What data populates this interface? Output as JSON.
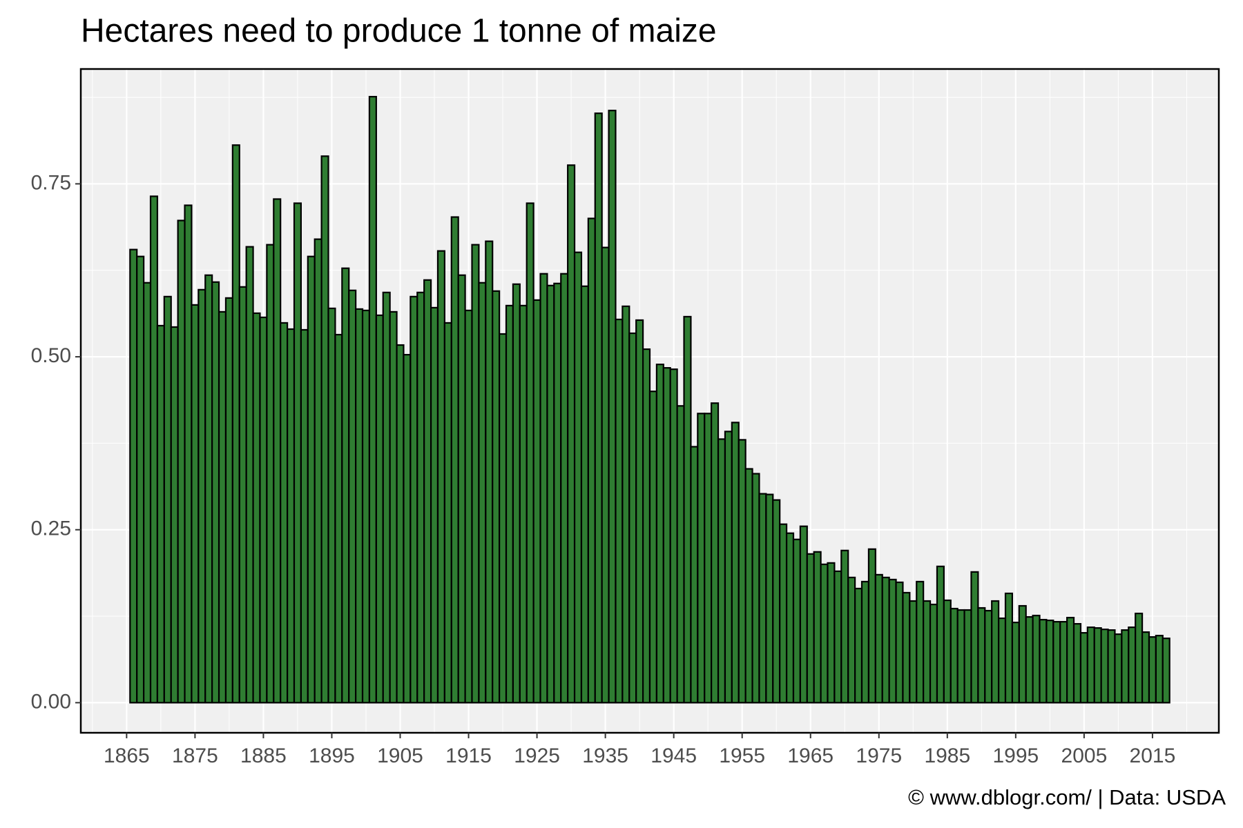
{
  "chart_data": {
    "type": "bar",
    "title": "Hectares need to produce 1 tonne of maize",
    "caption": "© www.dblogr.com/  |  Data: USDA",
    "x": [
      1866,
      1867,
      1868,
      1869,
      1870,
      1871,
      1872,
      1873,
      1874,
      1875,
      1876,
      1877,
      1878,
      1879,
      1880,
      1881,
      1882,
      1883,
      1884,
      1885,
      1886,
      1887,
      1888,
      1889,
      1890,
      1891,
      1892,
      1893,
      1894,
      1895,
      1896,
      1897,
      1898,
      1899,
      1900,
      1901,
      1902,
      1903,
      1904,
      1905,
      1906,
      1907,
      1908,
      1909,
      1910,
      1911,
      1912,
      1913,
      1914,
      1915,
      1916,
      1917,
      1918,
      1919,
      1920,
      1921,
      1922,
      1923,
      1924,
      1925,
      1926,
      1927,
      1928,
      1929,
      1930,
      1931,
      1932,
      1933,
      1934,
      1935,
      1936,
      1937,
      1938,
      1939,
      1940,
      1941,
      1942,
      1943,
      1944,
      1945,
      1946,
      1947,
      1948,
      1949,
      1950,
      1951,
      1952,
      1953,
      1954,
      1955,
      1956,
      1957,
      1958,
      1959,
      1960,
      1961,
      1962,
      1963,
      1964,
      1965,
      1966,
      1967,
      1968,
      1969,
      1970,
      1971,
      1972,
      1973,
      1974,
      1975,
      1976,
      1977,
      1978,
      1979,
      1980,
      1981,
      1982,
      1983,
      1984,
      1985,
      1986,
      1987,
      1988,
      1989,
      1990,
      1991,
      1992,
      1993,
      1994,
      1995,
      1996,
      1997,
      1998,
      1999,
      2000,
      2001,
      2002,
      2003,
      2004,
      2005,
      2006,
      2007,
      2008,
      2009,
      2010,
      2011,
      2012,
      2013,
      2014,
      2015,
      2016,
      2017
    ],
    "values": [
      0.655,
      0.645,
      0.607,
      0.732,
      0.545,
      0.587,
      0.543,
      0.697,
      0.719,
      0.575,
      0.597,
      0.618,
      0.608,
      0.565,
      0.585,
      0.806,
      0.601,
      0.659,
      0.563,
      0.557,
      0.662,
      0.728,
      0.549,
      0.54,
      0.722,
      0.539,
      0.645,
      0.67,
      0.79,
      0.57,
      0.532,
      0.628,
      0.596,
      0.569,
      0.567,
      0.876,
      0.56,
      0.593,
      0.565,
      0.517,
      0.503,
      0.587,
      0.593,
      0.611,
      0.571,
      0.653,
      0.549,
      0.702,
      0.618,
      0.567,
      0.662,
      0.607,
      0.667,
      0.595,
      0.533,
      0.574,
      0.605,
      0.574,
      0.722,
      0.582,
      0.62,
      0.603,
      0.606,
      0.62,
      0.777,
      0.651,
      0.602,
      0.7,
      0.852,
      0.658,
      0.856,
      0.554,
      0.573,
      0.534,
      0.553,
      0.511,
      0.45,
      0.489,
      0.484,
      0.482,
      0.429,
      0.558,
      0.37,
      0.418,
      0.418,
      0.433,
      0.381,
      0.392,
      0.405,
      0.38,
      0.338,
      0.331,
      0.302,
      0.301,
      0.293,
      0.258,
      0.245,
      0.236,
      0.255,
      0.215,
      0.218,
      0.2,
      0.202,
      0.19,
      0.22,
      0.181,
      0.165,
      0.175,
      0.222,
      0.185,
      0.181,
      0.178,
      0.174,
      0.159,
      0.147,
      0.175,
      0.147,
      0.142,
      0.197,
      0.148,
      0.136,
      0.134,
      0.134,
      0.189,
      0.137,
      0.133,
      0.147,
      0.122,
      0.158,
      0.116,
      0.14,
      0.124,
      0.126,
      0.12,
      0.119,
      0.117,
      0.117,
      0.123,
      0.114,
      0.101,
      0.109,
      0.108,
      0.106,
      0.105,
      0.099,
      0.105,
      0.109,
      0.129,
      0.102,
      0.095,
      0.097,
      0.093
    ],
    "color": "#2f7d32",
    "xlim": [
      1858.3,
      2024.7
    ],
    "xticks": [
      1865,
      1875,
      1885,
      1895,
      1905,
      1915,
      1925,
      1935,
      1945,
      1955,
      1965,
      1975,
      1985,
      1995,
      2005,
      2015
    ],
    "ylim": [
      -0.0435,
      0.916
    ],
    "yticks": [
      {
        "value": 0,
        "label": "0.00"
      },
      0.25,
      {
        "value": 0.5,
        "label": "0.50"
      },
      0.75
    ],
    "grid": true
  }
}
